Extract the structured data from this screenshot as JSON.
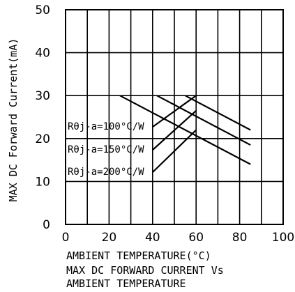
{
  "chart_data": {
    "type": "line",
    "title": "",
    "xlabel": "AMBIENT TEMPERATURE(°C)",
    "ylabel": "MAX DC Forward Current(mA)",
    "xlim": [
      0,
      100
    ],
    "ylim": [
      0,
      50
    ],
    "x_ticks": [
      "0",
      "20",
      "40",
      "60",
      "80",
      "100"
    ],
    "y_ticks": [
      "0",
      "10",
      "20",
      "30",
      "40",
      "50"
    ],
    "grid": true,
    "caption_line1": "MAX DC FORWARD CURRENT Vs",
    "caption_line2": "AMBIENT TEMPERATURE",
    "series": [
      {
        "name": "Rθj-a=100°C/W",
        "x": [
          25,
          85
        ],
        "y": [
          30,
          14
        ]
      },
      {
        "name": "Rθj-a=150°C/W",
        "x": [
          42,
          85
        ],
        "y": [
          30,
          18.5
        ]
      },
      {
        "name": "Rθj-a=200°C/W",
        "x": [
          55,
          85
        ],
        "y": [
          30,
          22
        ]
      }
    ],
    "annotations": [
      {
        "text": "Rθj-a=100°C/W",
        "target_series": 0
      },
      {
        "text": "Rθj-a=150°C/W",
        "target_series": 1
      },
      {
        "text": "Rθj-a=200°C/W",
        "target_series": 2
      }
    ]
  }
}
